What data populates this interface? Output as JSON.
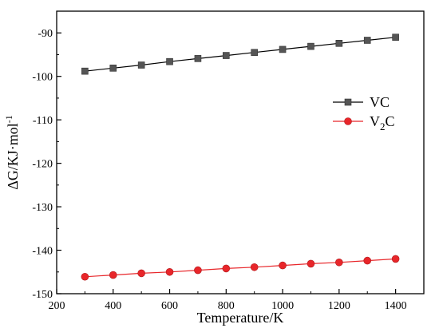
{
  "chart_data": {
    "type": "line",
    "xlabel": "Temperature/K",
    "ylabel_parts": [
      "ΔG/KJ·mol",
      "-1"
    ],
    "xlim": [
      200,
      1500
    ],
    "ylim": [
      -150,
      -85
    ],
    "xticks": [
      200,
      400,
      600,
      800,
      1000,
      1200,
      1400
    ],
    "yticks": [
      -150,
      -140,
      -130,
      -120,
      -110,
      -100,
      -90
    ],
    "grid": false,
    "legend_position": "right",
    "x": [
      300,
      400,
      500,
      600,
      700,
      800,
      900,
      1000,
      1100,
      1200,
      1300,
      1400
    ],
    "series": [
      {
        "name": "VC",
        "label_parts": [
          "VC"
        ],
        "marker": "square",
        "color": "#555555",
        "line_color": "#000000",
        "values": [
          -98.8,
          -98.1,
          -97.4,
          -96.6,
          -95.9,
          -95.2,
          -94.5,
          -93.8,
          -93.1,
          -92.4,
          -91.7,
          -91.0
        ]
      },
      {
        "name": "V2C",
        "label_parts": [
          "V",
          "2",
          "C"
        ],
        "marker": "circle",
        "color": "#e8262a",
        "line_color": "#e8262a",
        "values": [
          -146.1,
          -145.7,
          -145.3,
          -145.0,
          -144.6,
          -144.2,
          -143.9,
          -143.5,
          -143.1,
          -142.8,
          -142.4,
          -142.0
        ]
      }
    ]
  }
}
